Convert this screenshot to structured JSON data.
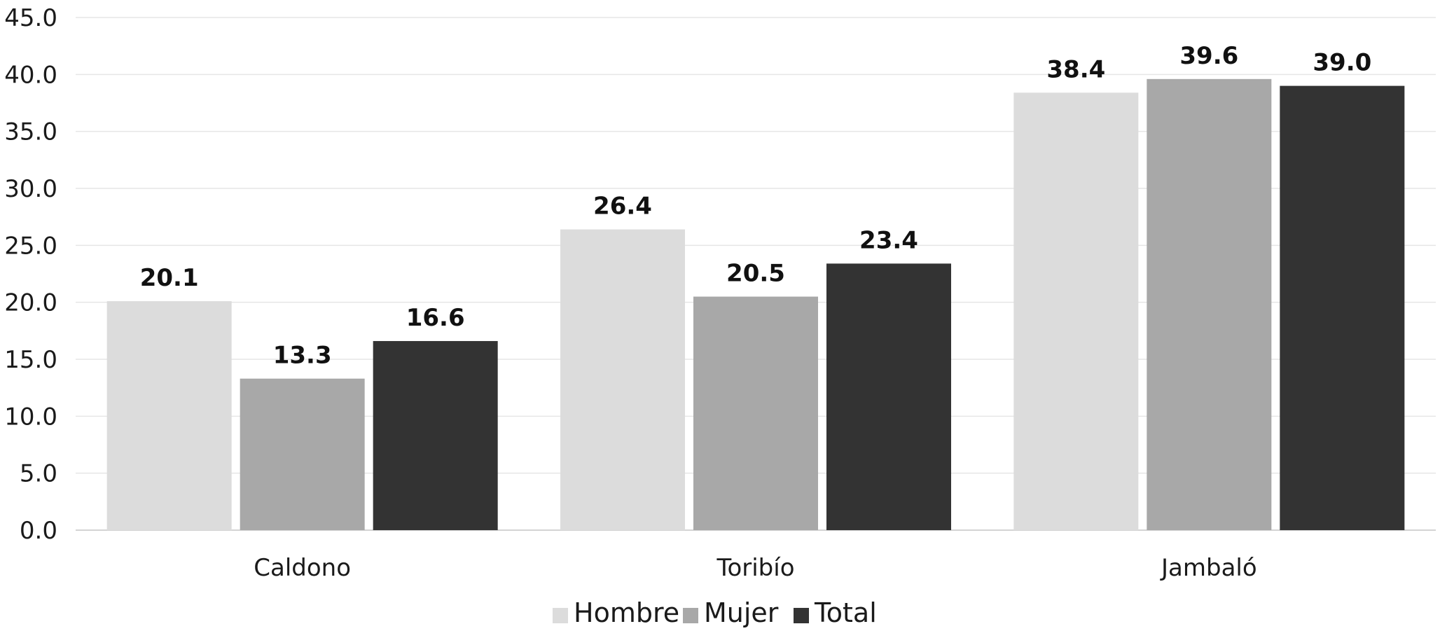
{
  "chart_data": {
    "type": "bar",
    "categories": [
      "Caldono",
      "Toribío",
      "Jambaló"
    ],
    "series": [
      {
        "name": "Hombre",
        "values": [
          20.1,
          26.4,
          38.4
        ],
        "color": "#dcdcdc"
      },
      {
        "name": "Mujer",
        "values": [
          13.3,
          20.5,
          39.6
        ],
        "color": "#a8a8a8"
      },
      {
        "name": "Total",
        "values": [
          16.6,
          23.4,
          39.0
        ],
        "color": "#333333"
      }
    ],
    "data_labels": [
      [
        "20.1",
        "26.4",
        "38.4"
      ],
      [
        "13.3",
        "20.5",
        "39.6"
      ],
      [
        "16.6",
        "23.4",
        "39.0"
      ]
    ],
    "yticks": [
      "0.0",
      "5.0",
      "10.0",
      "15.0",
      "20.0",
      "25.0",
      "30.0",
      "35.0",
      "40.0",
      "45.0"
    ],
    "ylim": [
      0,
      45
    ],
    "grid": true,
    "legend_position": "bottom",
    "title": "",
    "xlabel": "",
    "ylabel": ""
  }
}
